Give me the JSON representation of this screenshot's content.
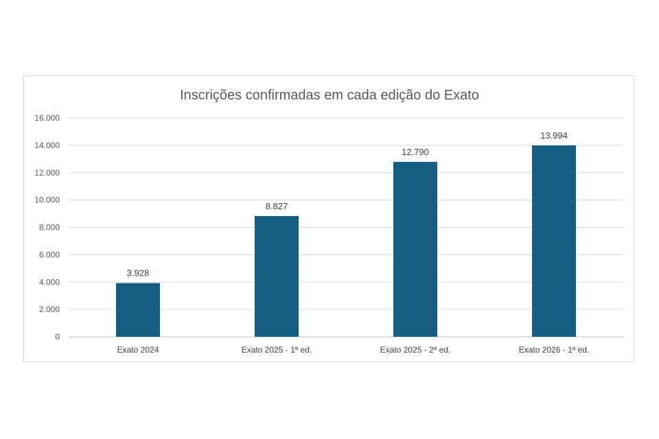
{
  "chart_data": {
    "type": "bar",
    "title": "Inscrições confirmadas em cada edição do Exato",
    "categories": [
      "Exato 2024",
      "Exato 2025 - 1ª ed.",
      "Exato 2025 - 2ª ed.",
      "Exato 2026 - 1ª ed."
    ],
    "values": [
      3928,
      8827,
      12790,
      13994
    ],
    "value_labels": [
      "3.928",
      "8.827",
      "12.790",
      "13.994"
    ],
    "ylim": [
      0,
      16000
    ],
    "yticks": [
      0,
      2000,
      4000,
      6000,
      8000,
      10000,
      12000,
      14000,
      16000
    ],
    "ytick_labels": [
      "0",
      "2.000",
      "4.000",
      "6.000",
      "8.000",
      "10.000",
      "12.000",
      "14.000",
      "16.000"
    ],
    "grid": true,
    "legend": "none",
    "bar_color": "#156082",
    "xlabel": "",
    "ylabel": ""
  }
}
